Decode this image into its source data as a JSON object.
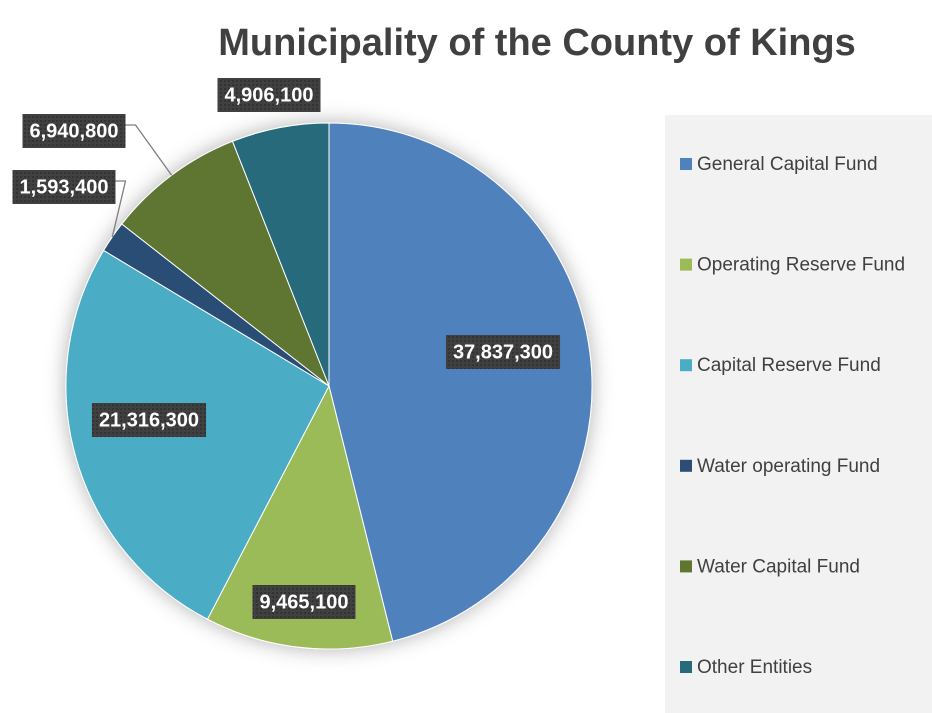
{
  "chart_data": {
    "type": "pie",
    "title": "Municipality of the County of Kings",
    "categories": [
      "General Capital Fund",
      "Operating Reserve Fund",
      "Capital Reserve Fund",
      "Water operating Fund",
      "Water Capital Fund",
      "Other Entities"
    ],
    "values": [
      37837300,
      9465100,
      21316300,
      1593400,
      6940800,
      4906100
    ],
    "value_labels": [
      "37,837,300",
      "9,465,100",
      "21,316,300",
      "1,593,400",
      "6,940,800",
      "4,906,100"
    ],
    "colors": [
      "#4f81bd",
      "#9bbb59",
      "#4bacc6",
      "#2c4d75",
      "#5f7530",
      "#276a7c"
    ],
    "legend": "right"
  }
}
